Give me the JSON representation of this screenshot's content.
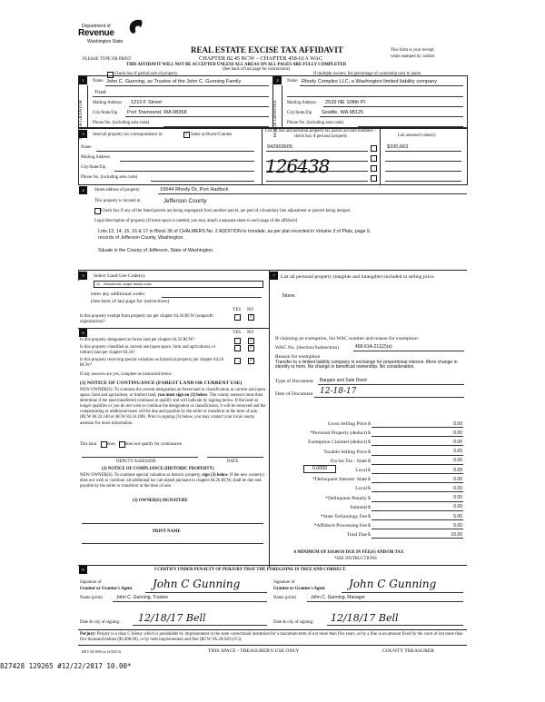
{
  "header": {
    "dept_line1": "Department of",
    "dept_line2": "Revenue",
    "dept_line3": "Washington State",
    "title": "REAL ESTATE EXCISE TAX AFFIDAVIT",
    "chapter": "CHAPTER 82.45 RCW – CHAPTER 458-61A WAC",
    "please": "PLEASE TYPE OR PRINT",
    "receipt1": "This form is your receipt",
    "receipt2": "when stamped by cashier.",
    "warning": "THIS AFFIDAVIT WILL NOT BE ACCEPTED UNLESS ALL AREAS ON ALL PAGES ARE FULLY COMPLETED",
    "see_back": "(See back of last page for instructions)",
    "partial_label": "Check box if partial sale of property",
    "multiple_owners": "If multiple owners, list percentage of ownership next to name."
  },
  "seller": {
    "num": "1",
    "side_label": "SELLER GRANTOR",
    "name_label": "Name",
    "name": "John C. Gunning, as Trustee of the John C. Gunning Family",
    "name2": "Trust",
    "mailing_label": "Mailing Address",
    "mailing": "1210 F Street",
    "city_label": "City/State/Zip",
    "city": "Port Townsend, WA 98368",
    "phone_label": "Phone No. (including area code)"
  },
  "buyer": {
    "num": "2",
    "side_label": "BUYER GRANTEE",
    "name_label": "Name",
    "name": "Rhody Complex LLC, a Washington limited liability company",
    "mailing_label": "Mailing Address",
    "mailing": "2539 NE 108th Pl",
    "city_label": "City/State/Zip",
    "city": "Seattle, WA 98125",
    "phone_label": "Phone No. (including area code)"
  },
  "sec3": {
    "num": "3",
    "send_label": "Send all property tax correspondence to:",
    "same_label": "Same as Buyer/Grantee",
    "same_checked": true,
    "name_label": "Name",
    "mailing_label": "Mailing Address",
    "city_label": "City/State/Zip",
    "phone_label": "Phone No. (including area code)",
    "parcel_header": "List all real and personal property tax parcel account numbers – check box if personal property",
    "assessed_header": "List assessed value(s)",
    "parcel": "942903605",
    "assessed": "$330,663",
    "handwritten": "126438"
  },
  "sec4": {
    "num": "4",
    "street_label": "Street address of property:",
    "street": "10644 Rhody Dr, Port Hadlock",
    "located_label": "This property is located in",
    "county": "Jefferson County",
    "segregated_label": "Check box if any of the listed parcels are being segregated from another parcel, are part of a boundary line adjustment or parcels being merged.",
    "legal_label": "Legal description of property (if more space is needed, you may attach a separate sheet to each page of the affidavit)",
    "legal1": "Lots 13, 14, 15, 16 & 17 in Block 36 of CHALMERS No. 2 ADDITION to Irondale, as per plat recorded in Volume 3 of Plats, page 9,",
    "legal2": "records of Jefferson County, Washington.",
    "situate": "Situate in the County of Jefferson, State of Washington."
  },
  "sec5": {
    "num": "5",
    "select_label": "Select Land Use Code(s):",
    "code": "11 - Household, single family units",
    "additional_label": "enter any additional codes:",
    "see_back": "(See back of last page for instructions)",
    "yes": "YES",
    "no": "NO",
    "exempt_q": "Is this property exempt from property tax per chapter 84.36 RCW (nonprofit organization)?"
  },
  "sec6": {
    "num": "6",
    "yes": "YES",
    "no": "NO",
    "questions": [
      {
        "text": "Is this property designated as forest land per chapter 84.33 RCW?",
        "answer": "no"
      },
      {
        "text": "Is this property classified as current use (open space, farm and agricultural, or timber) land per chapter 84.34?",
        "answer": "no"
      },
      {
        "text": "Is this property receiving special valuation as historical property per chapter 84.26 RCW?",
        "answer": "no"
      }
    ],
    "if_yes": "If any answers are yes, complete as instructed below.",
    "notice1_title": "(1) NOTICE OF CONTINUANCE (FOREST LAND OR CURRENT USE)",
    "notice1_a": "NEW OWNER(S): To continue the current designation as forest land or classification as current use (open space, farm and agriculture, or timber) land,",
    "notice1_bold": "you must sign on (3) below",
    "notice1_b": ". The county assessor must then determine if the land transferred continues to qualify and will indicate by signing below. If the land no longer qualifies or you do not wish to continue the designation or classification, it will be removed and the compensating or additional taxes will be due and payable by the seller or transferor at the time of sale. (RCW 84.33.140 or RCW 84.34.108). Prior to signing (3) below, you may contact your local county assessor for more information.",
    "this_land": "This land",
    "does": "does.",
    "does_not": "does not qualify for continuance.",
    "deputy": "DEPUTY ASSESSOR",
    "date": "DATE",
    "notice2_title": "(2) NOTICE OF COMPLIANCE (HISTORIC PROPERTY)",
    "notice2_a": "NEW OWNER(S): To continue special valuation as historic property,",
    "notice2_bold": "sign (3) below",
    "notice2_b": ". If the new owner(s) does not wish to continue, all additional tax calculated pursuant to chapter 84.26 RCW, shall be due and payable by the seller or transferor at the time of sale.",
    "owner_sig": "(3) OWNER(S) SIGNATURE",
    "print_name": "PRINT NAME"
  },
  "sec7": {
    "num": "7",
    "personal_label": "List all personal property (tangible and intangible) included in selling price.",
    "personal": "None.",
    "claiming": "If claiming an exemption, list WAC number and reason for exemption:",
    "wac_label": "WAC No. (Section/Subsection)",
    "wac": "458-61A-211(2)(a)",
    "reason_label": "Reason for exemption",
    "reason": "Transfer to a limited liability company in exchange for proportional interest. Mere change in identity or form. No change in beneficial ownership. No consideration.",
    "doc_type_label": "Type of Document",
    "doc_type": "Bargain and Sale Deed",
    "doc_date_label": "Date of Document",
    "doc_date": "12-18-17",
    "local_rate": "0.0050",
    "fees": [
      {
        "label": "Gross Selling Price",
        "value": "0.00"
      },
      {
        "label": "*Personal Property (deduct)",
        "value": "0.00"
      },
      {
        "label": "Exemption Claimed (deduct)",
        "value": "0.00"
      },
      {
        "label": "Taxable Selling Price",
        "value": "0.00"
      },
      {
        "label": "Excise Tax : State",
        "value": "0.00"
      },
      {
        "label": "Local",
        "value": "0.00"
      },
      {
        "label": "*Delinquent Interest: State",
        "value": "0.00"
      },
      {
        "label": "Local",
        "value": "0.00"
      },
      {
        "label": "*Delinquent Penalty",
        "value": "0.00"
      },
      {
        "label": "Subtotal",
        "value": "0.00"
      },
      {
        "label": "*State Technology Fee",
        "value": "5.00"
      },
      {
        "label": "*Affidavit Processing Fee",
        "value": "5.00"
      },
      {
        "label": "Total Due",
        "value": "10.00"
      }
    ],
    "currency": "$",
    "minimum": "A MINIMUM OF $10.00 IS DUE IN FEE(S) AND/OR TAX",
    "see_instr": "*SEE INSTRUCTIONS"
  },
  "sec8": {
    "num": "8",
    "certify": "I CERTIFY UNDER PENALTY OF PERJURY THAT THE FOREGOING IS TRUE AND CORRECT.",
    "grantor_sig_label1": "Signature of",
    "grantor_sig_label2": "Grantor or Grantor's Agent",
    "grantor_name_label": "Name (print)",
    "grantor_name": "John C. Gunning, Trustee",
    "grantor_date_label": "Date & city of signing:",
    "grantor_date": "12/18/17 Bell",
    "grantee_sig_label1": "Signature of",
    "grantee_sig_label2": "Grantee or Grantee's Agent",
    "grantee_name_label": "Name (print)",
    "grantee_name": "John C. Gunning, Manager",
    "grantee_date_label": "Date & city of signing:",
    "grantee_date": "12/18/17 Bell",
    "signature": "John C Gunning",
    "perjury_bold": "Perjury:",
    "perjury": "Perjury is a class C felony which is punishable by imprisonment in the state correctional institution for a maximum term of not more than five years, or by a fine in an amount fixed by the court of not more than five thousand dollars ($5,000.00), or by both imprisonment and fine (RCW 9A.20.020 (1C))."
  },
  "footer": {
    "rev": "REV 84 0001ae (2/28/13)",
    "treasurer_space": "THIS SPACE - TREASURER'S USE ONLY",
    "county_treasurer": "COUNTY TREASURER",
    "stamp": "827428 129265 #12/22/2017 10.00*"
  }
}
